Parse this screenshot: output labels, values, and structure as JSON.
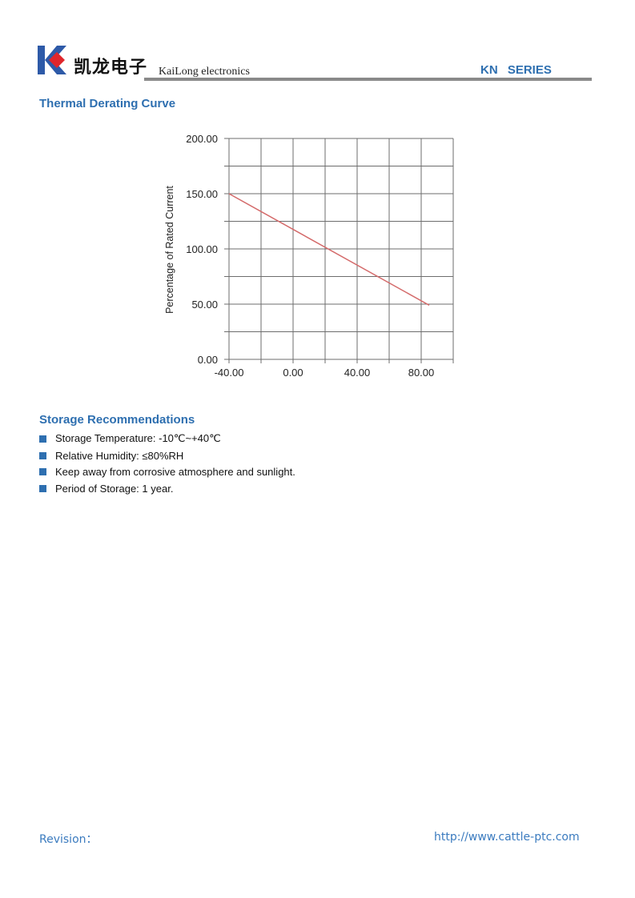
{
  "header": {
    "logo_cn": "凯龙电子",
    "logo_en": "KaiLong electronics",
    "series": "KN SERIES",
    "brand_colors": {
      "blue": "#2e5aa8",
      "red": "#e0262b"
    }
  },
  "section1_title": "Thermal Derating Curve",
  "chart_data": {
    "type": "line",
    "title": "",
    "xlabel": "",
    "ylabel": "Percentage of Rated Current",
    "xlim": [
      -40,
      100
    ],
    "ylim": [
      0,
      200
    ],
    "x_ticks": [
      "-40.00",
      "0.00",
      "40.00",
      "80.00"
    ],
    "x_tick_values": [
      -40,
      0,
      40,
      80
    ],
    "y_ticks": [
      "0.00",
      "50.00",
      "100.00",
      "150.00",
      "200.00"
    ],
    "y_tick_values": [
      0,
      50,
      100,
      150,
      200
    ],
    "x_grid_step": 20,
    "y_grid_step": 25,
    "grid": true,
    "series": [
      {
        "x": [
          -40,
          85
        ],
        "y": [
          150,
          49
        ],
        "color": "#d46a6a"
      }
    ]
  },
  "section2_title": "Storage Recommendations",
  "storage": [
    "Storage Temperature: -10℃~+40℃",
    "Relative Humidity: ≤80%RH",
    "Keep away from corrosive atmosphere and sunlight.",
    "Period of Storage: 1 year."
  ],
  "footer": {
    "revision": "Revision：",
    "url": "http://www.cattle-ptc.com"
  }
}
